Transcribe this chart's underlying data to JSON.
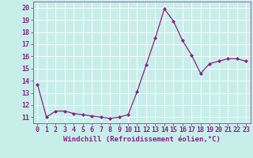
{
  "x": [
    0,
    1,
    2,
    3,
    4,
    5,
    6,
    7,
    8,
    9,
    10,
    11,
    12,
    13,
    14,
    15,
    16,
    17,
    18,
    19,
    20,
    21,
    22,
    23
  ],
  "y": [
    13.7,
    11.0,
    11.5,
    11.5,
    11.3,
    11.2,
    11.1,
    11.0,
    10.9,
    11.0,
    11.2,
    13.1,
    15.3,
    17.5,
    19.9,
    18.9,
    17.3,
    16.1,
    14.6,
    15.4,
    15.6,
    15.8,
    15.8,
    15.6
  ],
  "line_color": "#882288",
  "marker": "D",
  "marker_size": 2.0,
  "line_width": 0.9,
  "xlabel": "Windchill (Refroidissement éolien,°C)",
  "xlabel_fontsize": 6.5,
  "background_color": "#c8eeea",
  "grid_color": "#ffffff",
  "tick_label_fontsize": 6.0,
  "ylim": [
    10.5,
    20.5
  ],
  "yticks": [
    11,
    12,
    13,
    14,
    15,
    16,
    17,
    18,
    19,
    20
  ],
  "xlim": [
    -0.5,
    23.5
  ],
  "xticks": [
    0,
    1,
    2,
    3,
    4,
    5,
    6,
    7,
    8,
    9,
    10,
    11,
    12,
    13,
    14,
    15,
    16,
    17,
    18,
    19,
    20,
    21,
    22,
    23
  ]
}
